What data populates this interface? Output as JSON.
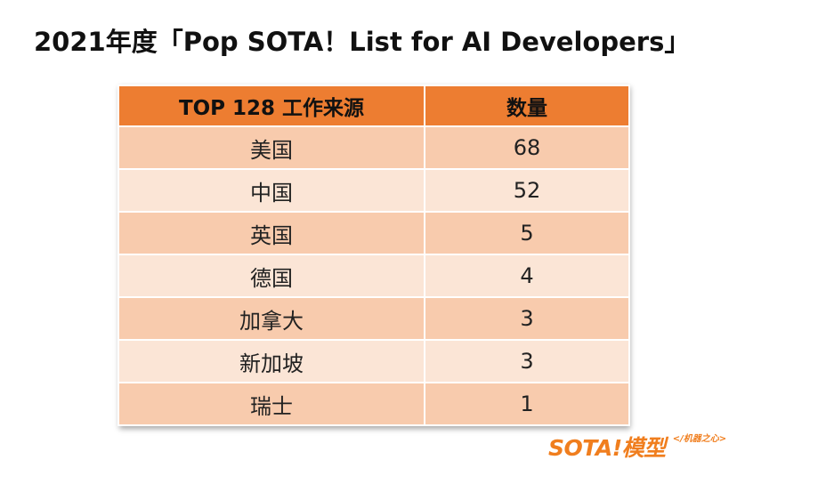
{
  "title": "2021年度「Pop SOTA！List for AI Developers」",
  "chart_data": {
    "type": "table",
    "columns": [
      "TOP 128 工作来源",
      "数量"
    ],
    "rows": [
      {
        "country": "美国",
        "count": "68"
      },
      {
        "country": "中国",
        "count": "52"
      },
      {
        "country": "英国",
        "count": "5"
      },
      {
        "country": "德国",
        "count": "4"
      },
      {
        "country": "加拿大",
        "count": "3"
      },
      {
        "country": "新加坡",
        "count": "3"
      },
      {
        "country": "瑞士",
        "count": "1"
      }
    ]
  },
  "logo": {
    "main": "SOTA!模型",
    "sub": "</机器之心>"
  },
  "colors": {
    "header": "#ed7d31",
    "row_odd": "#f8cbad",
    "row_even": "#fbe5d6",
    "logo": "#f07e1e"
  }
}
